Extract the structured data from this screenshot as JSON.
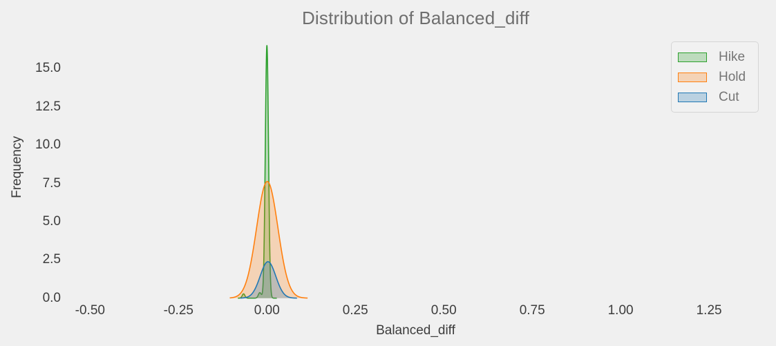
{
  "figure": {
    "background_color": "#f0f0f0",
    "text_color_ticks": "#3c3c3c",
    "text_color_title": "#6e6e6e",
    "legend_text_color": "#757575"
  },
  "chart_data": {
    "type": "area",
    "subtype": "kde-distribution",
    "title": "Distribution of Balanced_diff",
    "xlabel": "Balanced_diff",
    "ylabel": "Frequency",
    "grid": false,
    "legend_position": "upper right",
    "xlim": [
      -0.569,
      1.41
    ],
    "ylim": [
      0,
      17.22
    ],
    "xticks": {
      "values": [
        -0.5,
        -0.25,
        0.0,
        0.25,
        0.5,
        0.75,
        1.0,
        1.25
      ],
      "labels": [
        "-0.50",
        "-0.25",
        "0.00",
        "0.25",
        "0.50",
        "0.75",
        "1.00",
        "1.25"
      ]
    },
    "yticks": {
      "values": [
        0.0,
        2.5,
        5.0,
        7.5,
        10.0,
        12.5,
        15.0
      ],
      "labels": [
        "0.0",
        "2.5",
        "5.0",
        "7.5",
        "10.0",
        "12.5",
        "15.0"
      ]
    },
    "series": [
      {
        "name": "Hike",
        "color": "#2ca02c",
        "fill_alpha": 0.26,
        "peak_x": 0.0,
        "peak_value": 16.5,
        "domain": [
          -0.082,
          0.028
        ],
        "gaussians": [
          {
            "mu": 0.0,
            "sigma": 0.0045,
            "amp": 16.5
          },
          {
            "mu": -0.066,
            "sigma": 0.0038,
            "amp": 0.28
          },
          {
            "mu": -0.02,
            "sigma": 0.0042,
            "amp": 0.36
          }
        ]
      },
      {
        "name": "Hold",
        "color": "#ff7f0e",
        "fill_alpha": 0.26,
        "peak_x": 0.001,
        "peak_value": 7.62,
        "domain": [
          -0.105,
          0.115
        ],
        "gaussians": [
          {
            "mu": 0.001,
            "sigma": 0.03,
            "amp": 7.62
          }
        ]
      },
      {
        "name": "Cut",
        "color": "#1f77b4",
        "fill_alpha": 0.26,
        "peak_x": 0.003,
        "peak_value": 2.38,
        "domain": [
          -0.075,
          0.085
        ],
        "gaussians": [
          {
            "mu": 0.003,
            "sigma": 0.022,
            "amp": 2.38
          }
        ]
      }
    ]
  }
}
